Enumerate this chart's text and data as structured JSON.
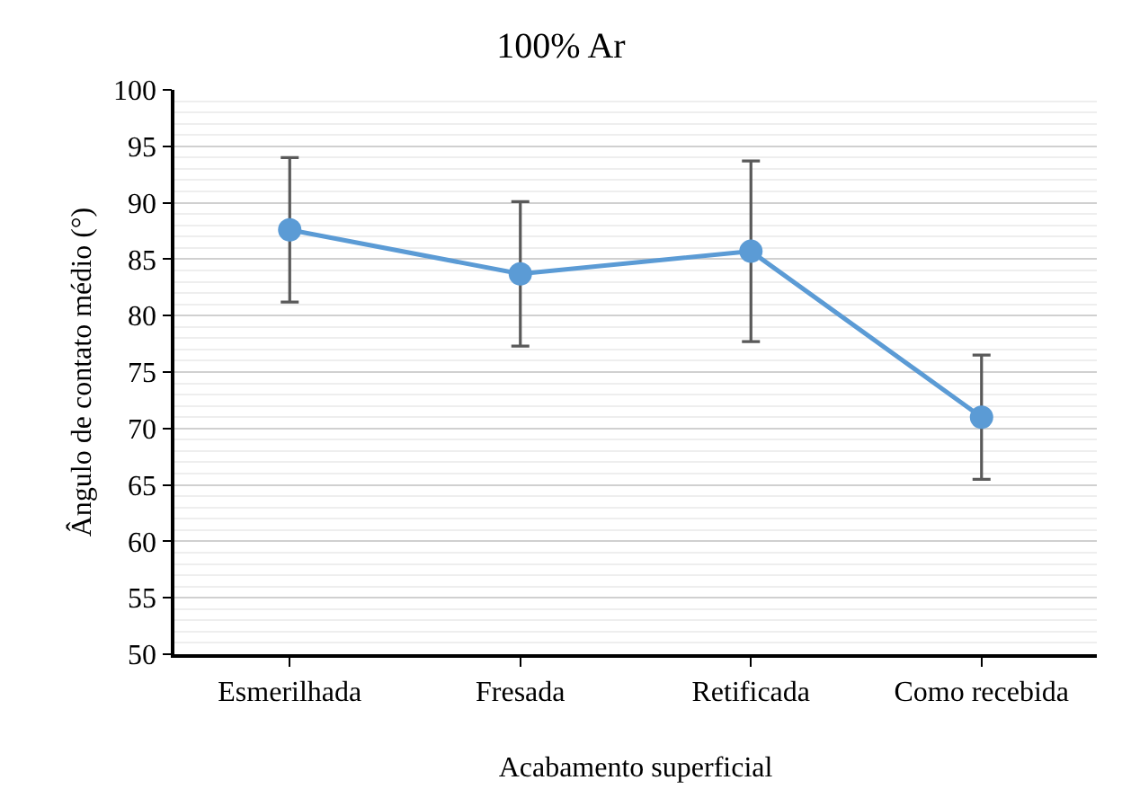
{
  "chart_data": {
    "type": "line",
    "title": "100% Ar",
    "xlabel": "Acabamento superficial",
    "ylabel": "Ângulo de contato médio (°)",
    "categories": [
      "Esmerilhada",
      "Fresada",
      "Retificada",
      "Como recebida"
    ],
    "series": [
      {
        "color": "#5b9bd5",
        "values": [
          87.6,
          83.7,
          85.7,
          71.0
        ],
        "errors": [
          6.4,
          6.4,
          8.0,
          5.5
        ]
      }
    ],
    "ylim": [
      50,
      100
    ],
    "yticks": [
      50,
      55,
      60,
      65,
      70,
      75,
      80,
      85,
      90,
      95,
      100
    ],
    "grid": "y",
    "marker": "circle",
    "line_style": "solid"
  }
}
